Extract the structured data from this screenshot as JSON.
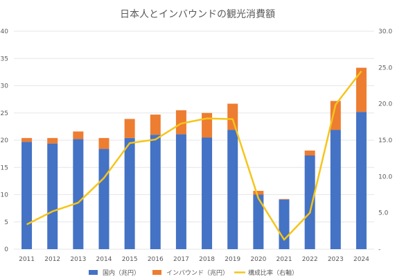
{
  "chart_data": {
    "type": "bar+line",
    "title": "日本人とインバウンドの観光消費額",
    "categories": [
      "2011",
      "2012",
      "2013",
      "2014",
      "2015",
      "2016",
      "2017",
      "2018",
      "2019",
      "2020",
      "2021",
      "2022",
      "2023",
      "2024"
    ],
    "series": [
      {
        "name": "国内（兆円）",
        "type": "stacked-bar",
        "axis": "left",
        "color": "#4472C4",
        "values": [
          19.7,
          19.4,
          20.2,
          18.4,
          20.4,
          21.0,
          21.1,
          20.5,
          21.9,
          10.0,
          9.1,
          17.2,
          21.9,
          25.2
        ]
      },
      {
        "name": "インバウンド（兆円）",
        "type": "stacked-bar",
        "axis": "left",
        "color": "#ED7D31",
        "values": [
          0.7,
          1.0,
          1.4,
          2.0,
          3.5,
          3.7,
          4.4,
          4.5,
          4.8,
          0.7,
          0.1,
          0.9,
          5.3,
          8.1
        ]
      },
      {
        "name": "構成比率（右軸）",
        "type": "line",
        "axis": "right",
        "color": "#F5C518",
        "values": [
          3.4,
          5.2,
          6.4,
          9.8,
          14.6,
          15.1,
          17.3,
          18.0,
          17.9,
          7.0,
          1.3,
          5.0,
          19.9,
          24.5
        ]
      }
    ],
    "y_left": {
      "min": 0,
      "max": 40,
      "ticks": [
        "0",
        "5",
        "10",
        "15",
        "20",
        "25",
        "30",
        "35",
        "40"
      ]
    },
    "y_right": {
      "min": 0,
      "max": 30,
      "ticks": [
        "-",
        "5.0",
        "10.0",
        "15.0",
        "20.0",
        "25.0",
        "30.0"
      ]
    },
    "grid": true,
    "legend_position": "bottom"
  }
}
